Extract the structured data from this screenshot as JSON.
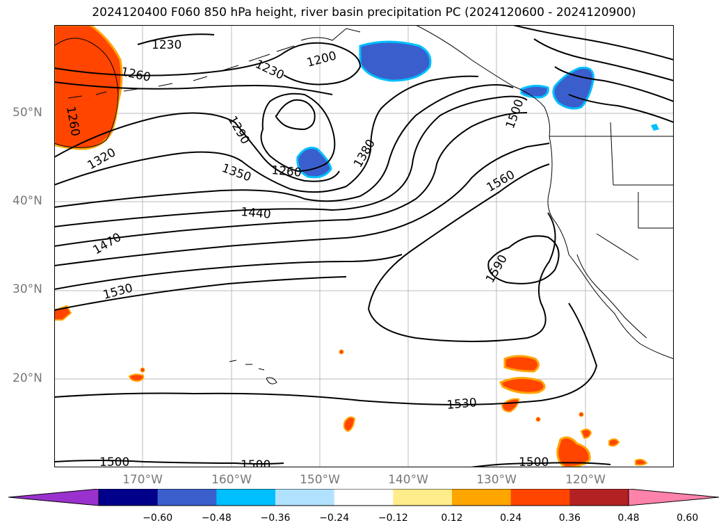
{
  "title": "2024120400 F060 850 hPa height, river basin precipitation PC (2024120600 - 2024120900)",
  "lat_labels": [
    "50°N",
    "40°N",
    "30°N",
    "20°N"
  ],
  "lon_labels": [
    "170°W",
    "160°W",
    "150°W",
    "140°W",
    "130°W",
    "120°W"
  ],
  "contour_labels": [
    "1230",
    "1260",
    "1230",
    "1200",
    "1260",
    "1290",
    "1320",
    "1350",
    "1260",
    "1380",
    "1440",
    "1470",
    "1530",
    "1560",
    "1590",
    "1500",
    "1530",
    "1500",
    "1500",
    "1500"
  ],
  "colorbar": {
    "ticks": [
      "−0.60",
      "−0.48",
      "−0.36",
      "−0.24",
      "−0.12",
      "0.12",
      "0.24",
      "0.36",
      "0.48",
      "0.60"
    ],
    "colors": [
      "#9932cc",
      "#00008b",
      "#3a5fcd",
      "#00bfff",
      "#b0e2ff",
      "#ffffff",
      "#ffec8b",
      "#ffa500",
      "#ff4500",
      "#b22222",
      "#ff82ab"
    ]
  }
}
